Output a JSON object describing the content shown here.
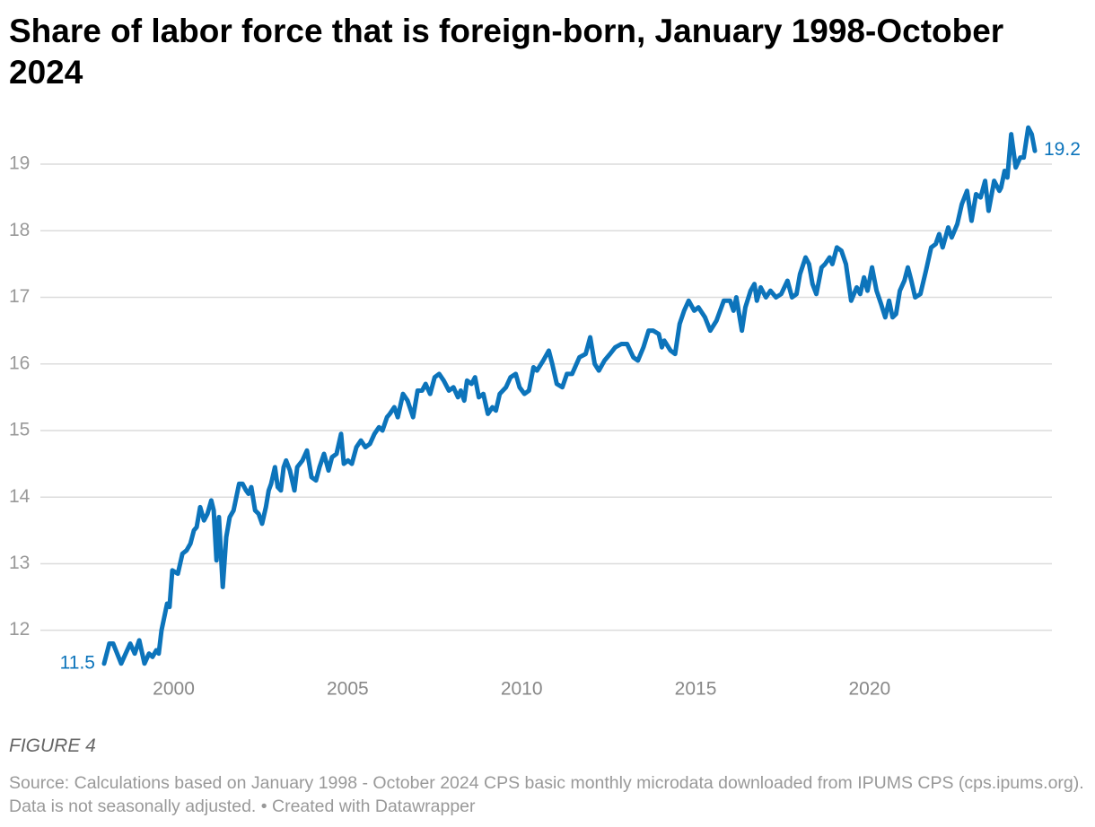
{
  "chart_data": {
    "type": "line",
    "title": "Share of labor force that is foreign-born, January 1998-October 2024",
    "figure_label": "FIGURE 4",
    "source": "Source: Calculations based on January 1998 - October 2024 CPS basic monthly microdata downloaded from IPUMS CPS (cps.ipums.org). Data is not seasonally adjusted. • Created with Datawrapper",
    "color": "#0c74bb",
    "xlim": [
      1998,
      2024.75
    ],
    "xticks": [
      2000,
      2005,
      2010,
      2015,
      2020
    ],
    "ylim": [
      11.43,
      19.58
    ],
    "yticks": [
      12,
      13,
      14,
      15,
      16,
      17,
      18,
      19
    ],
    "grid": true,
    "x": [
      1998.0,
      1998.15,
      1998.26,
      1998.49,
      1998.75,
      1998.88,
      1999.01,
      1999.16,
      1999.29,
      1999.39,
      1999.5,
      1999.57,
      1999.65,
      1999.73,
      1999.81,
      1999.88,
      1999.96,
      2000.12,
      2000.25,
      2000.37,
      2000.48,
      2000.58,
      2000.66,
      2000.76,
      2000.87,
      2000.97,
      2001.08,
      2001.15,
      2001.23,
      2001.3,
      2001.41,
      2001.51,
      2001.61,
      2001.72,
      2001.8,
      2001.88,
      2001.98,
      2002.08,
      2002.15,
      2002.23,
      2002.34,
      2002.44,
      2002.54,
      2002.65,
      2002.73,
      2002.8,
      2002.91,
      2002.99,
      2003.08,
      2003.16,
      2003.23,
      2003.34,
      2003.47,
      2003.55,
      2003.7,
      2003.83,
      2003.96,
      2004.09,
      2004.19,
      2004.32,
      2004.45,
      2004.55,
      2004.68,
      2004.81,
      2004.89,
      2005.01,
      2005.12,
      2005.25,
      2005.38,
      2005.51,
      2005.64,
      2005.77,
      2005.9,
      2006.0,
      2006.13,
      2006.21,
      2006.34,
      2006.44,
      2006.59,
      2006.72,
      2006.88,
      2007.01,
      2007.14,
      2007.24,
      2007.37,
      2007.5,
      2007.63,
      2007.76,
      2007.91,
      2008.04,
      2008.17,
      2008.25,
      2008.35,
      2008.43,
      2008.56,
      2008.66,
      2008.77,
      2008.9,
      2009.03,
      2009.16,
      2009.26,
      2009.37,
      2009.55,
      2009.68,
      2009.83,
      2009.94,
      2010.08,
      2010.21,
      2010.34,
      2010.44,
      2010.62,
      2010.78,
      2010.88,
      2011.01,
      2011.17,
      2011.3,
      2011.45,
      2011.66,
      2011.84,
      2011.97,
      2012.1,
      2012.22,
      2012.38,
      2012.54,
      2012.69,
      2012.87,
      2013.03,
      2013.21,
      2013.34,
      2013.5,
      2013.65,
      2013.78,
      2013.94,
      2014.03,
      2014.1,
      2014.28,
      2014.41,
      2014.54,
      2014.67,
      2014.8,
      2014.96,
      2015.08,
      2015.27,
      2015.42,
      2015.6,
      2015.81,
      2015.99,
      2016.09,
      2016.17,
      2016.33,
      2016.43,
      2016.58,
      2016.69,
      2016.76,
      2016.87,
      2017.02,
      2017.15,
      2017.31,
      2017.46,
      2017.64,
      2017.77,
      2017.9,
      2018.0,
      2018.16,
      2018.26,
      2018.36,
      2018.47,
      2018.62,
      2018.72,
      2018.85,
      2018.93,
      2019.06,
      2019.19,
      2019.32,
      2019.47,
      2019.63,
      2019.73,
      2019.84,
      2019.94,
      2020.07,
      2020.2,
      2020.33,
      2020.45,
      2020.56,
      2020.66,
      2020.76,
      2020.87,
      2021.0,
      2021.1,
      2021.2,
      2021.31,
      2021.46,
      2021.62,
      2021.77,
      2021.9,
      2022.0,
      2022.1,
      2022.26,
      2022.36,
      2022.52,
      2022.65,
      2022.8,
      2022.93,
      2023.06,
      2023.19,
      2023.32,
      2023.42,
      2023.58,
      2023.73,
      2023.78,
      2023.88,
      2023.96,
      2024.07,
      2024.2,
      2024.33,
      2024.43,
      2024.56,
      2024.66,
      2024.75
    ],
    "values": [
      11.5,
      11.8,
      11.8,
      11.5,
      11.8,
      11.65,
      11.85,
      11.5,
      11.65,
      11.6,
      11.7,
      11.65,
      12.0,
      12.2,
      12.4,
      12.35,
      12.9,
      12.85,
      13.15,
      13.2,
      13.3,
      13.5,
      13.55,
      13.85,
      13.65,
      13.75,
      13.95,
      13.8,
      13.05,
      13.7,
      12.65,
      13.4,
      13.7,
      13.8,
      14.0,
      14.2,
      14.2,
      14.1,
      14.05,
      14.15,
      13.8,
      13.75,
      13.6,
      13.85,
      14.1,
      14.2,
      14.45,
      14.15,
      14.1,
      14.45,
      14.55,
      14.4,
      14.1,
      14.45,
      14.55,
      14.7,
      14.3,
      14.25,
      14.45,
      14.65,
      14.4,
      14.6,
      14.65,
      14.95,
      14.5,
      14.55,
      14.5,
      14.75,
      14.85,
      14.75,
      14.8,
      14.95,
      15.05,
      15.0,
      15.2,
      15.25,
      15.35,
      15.2,
      15.55,
      15.45,
      15.2,
      15.6,
      15.6,
      15.7,
      15.55,
      15.8,
      15.85,
      15.75,
      15.6,
      15.65,
      15.5,
      15.6,
      15.45,
      15.75,
      15.7,
      15.8,
      15.5,
      15.55,
      15.25,
      15.35,
      15.3,
      15.55,
      15.65,
      15.8,
      15.85,
      15.65,
      15.55,
      15.6,
      15.95,
      15.9,
      16.05,
      16.2,
      16.0,
      15.7,
      15.65,
      15.85,
      15.85,
      16.1,
      16.15,
      16.4,
      16.0,
      15.9,
      16.05,
      16.15,
      16.25,
      16.3,
      16.3,
      16.1,
      16.05,
      16.25,
      16.5,
      16.5,
      16.45,
      16.25,
      16.35,
      16.2,
      16.15,
      16.6,
      16.8,
      16.95,
      16.8,
      16.85,
      16.7,
      16.5,
      16.65,
      16.95,
      16.95,
      16.8,
      17.0,
      16.5,
      16.85,
      17.1,
      17.2,
      16.95,
      17.15,
      17.0,
      17.1,
      17.0,
      17.05,
      17.25,
      17.0,
      17.05,
      17.35,
      17.6,
      17.5,
      17.2,
      17.05,
      17.45,
      17.5,
      17.6,
      17.5,
      17.75,
      17.7,
      17.5,
      16.95,
      17.15,
      17.05,
      17.3,
      17.1,
      17.45,
      17.1,
      16.9,
      16.7,
      16.95,
      16.7,
      16.75,
      17.1,
      17.25,
      17.45,
      17.25,
      17.0,
      17.05,
      17.4,
      17.75,
      17.8,
      17.95,
      17.75,
      18.05,
      17.9,
      18.1,
      18.4,
      18.6,
      18.15,
      18.55,
      18.5,
      18.75,
      18.3,
      18.75,
      18.6,
      18.65,
      18.9,
      18.8,
      19.45,
      18.95,
      19.1,
      19.1,
      19.55,
      19.45,
      19.2
    ]
  }
}
